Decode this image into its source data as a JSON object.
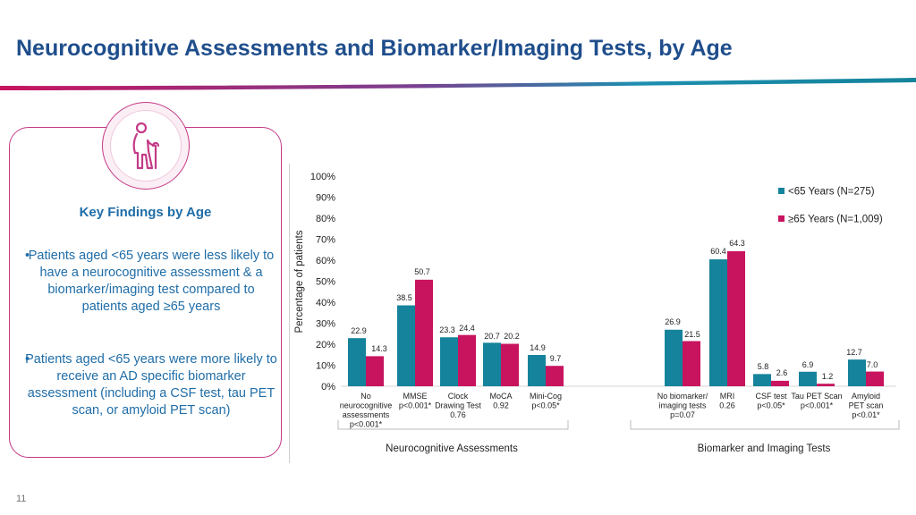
{
  "slide": {
    "title": "Neurocognitive Assessments and Biomarker/Imaging Tests, by Age",
    "page_number": "11",
    "icon": "elderly-person-with-cane-icon"
  },
  "key_findings": {
    "heading": "Key Findings by Age",
    "bullet_1": "Patients aged <65 years were less likely to have a neurocognitive assessment & a biomarker/imaging test compared to patients aged ≥65 years",
    "bullet_2": "Patients aged <65 years were more likely to receive an AD specific biomarker assessment (including a CSF test, tau PET scan, or amyloid PET scan)"
  },
  "colors": {
    "title": "#1f4e8c",
    "teal": "#15839b",
    "magenta": "#c8145f",
    "accent_border": "#c43a86",
    "finding_text": "#1f6da8"
  },
  "chart_data": {
    "type": "bar",
    "ylabel": "Percentage of patients",
    "ylim": [
      0,
      100
    ],
    "yticks": [
      "0%",
      "10%",
      "20%",
      "30%",
      "40%",
      "50%",
      "60%",
      "70%",
      "80%",
      "90%",
      "100%"
    ],
    "legend_position": "top-right",
    "series": [
      {
        "name": "<65 Years (N=275)",
        "color": "#15839b",
        "values": [
          22.9,
          38.5,
          23.3,
          20.7,
          14.9,
          26.9,
          60.4,
          5.8,
          6.9,
          12.7
        ]
      },
      {
        "name": "≥65 Years (N=1,009)",
        "color": "#c8145f",
        "values": [
          14.3,
          50.7,
          24.4,
          20.2,
          9.7,
          21.5,
          64.3,
          2.6,
          1.2,
          7.0
        ]
      }
    ],
    "value_labels": [
      [
        "22.9",
        "14.3"
      ],
      [
        "38.5",
        "50.7"
      ],
      [
        "23.3",
        "24.4"
      ],
      [
        "20.7",
        "20.2"
      ],
      [
        "14.9",
        "9.7"
      ],
      [
        "26.9",
        "21.5"
      ],
      [
        "60.4",
        "64.3"
      ],
      [
        "5.8",
        "2.6"
      ],
      [
        "6.9",
        "1.2"
      ],
      [
        "12.7",
        "7.0"
      ]
    ],
    "categories": [
      {
        "label_lines": [
          "No",
          "neurocognitive",
          "assessments",
          "p<0.001*"
        ]
      },
      {
        "label_lines": [
          "MMSE",
          "p<0.001*"
        ]
      },
      {
        "label_lines": [
          "Clock",
          "Drawing Test",
          "0.76"
        ]
      },
      {
        "label_lines": [
          "MoCA",
          "0.92"
        ]
      },
      {
        "label_lines": [
          "Mini-Cog",
          "p<0.05*"
        ]
      },
      {
        "label_lines": [
          "No biomarker/",
          "imaging tests",
          "p=0.07"
        ]
      },
      {
        "label_lines": [
          "MRI",
          "0.26"
        ]
      },
      {
        "label_lines": [
          "CSF test",
          "p<0.05*"
        ]
      },
      {
        "label_lines": [
          "Tau PET Scan",
          "p<0.001*"
        ]
      },
      {
        "label_lines": [
          "Amyloid",
          "PET scan",
          "p<0.01*"
        ]
      }
    ],
    "groups": [
      {
        "label": "Neurocognitive Assessments"
      },
      {
        "label": "Biomarker and Imaging Tests"
      }
    ]
  }
}
